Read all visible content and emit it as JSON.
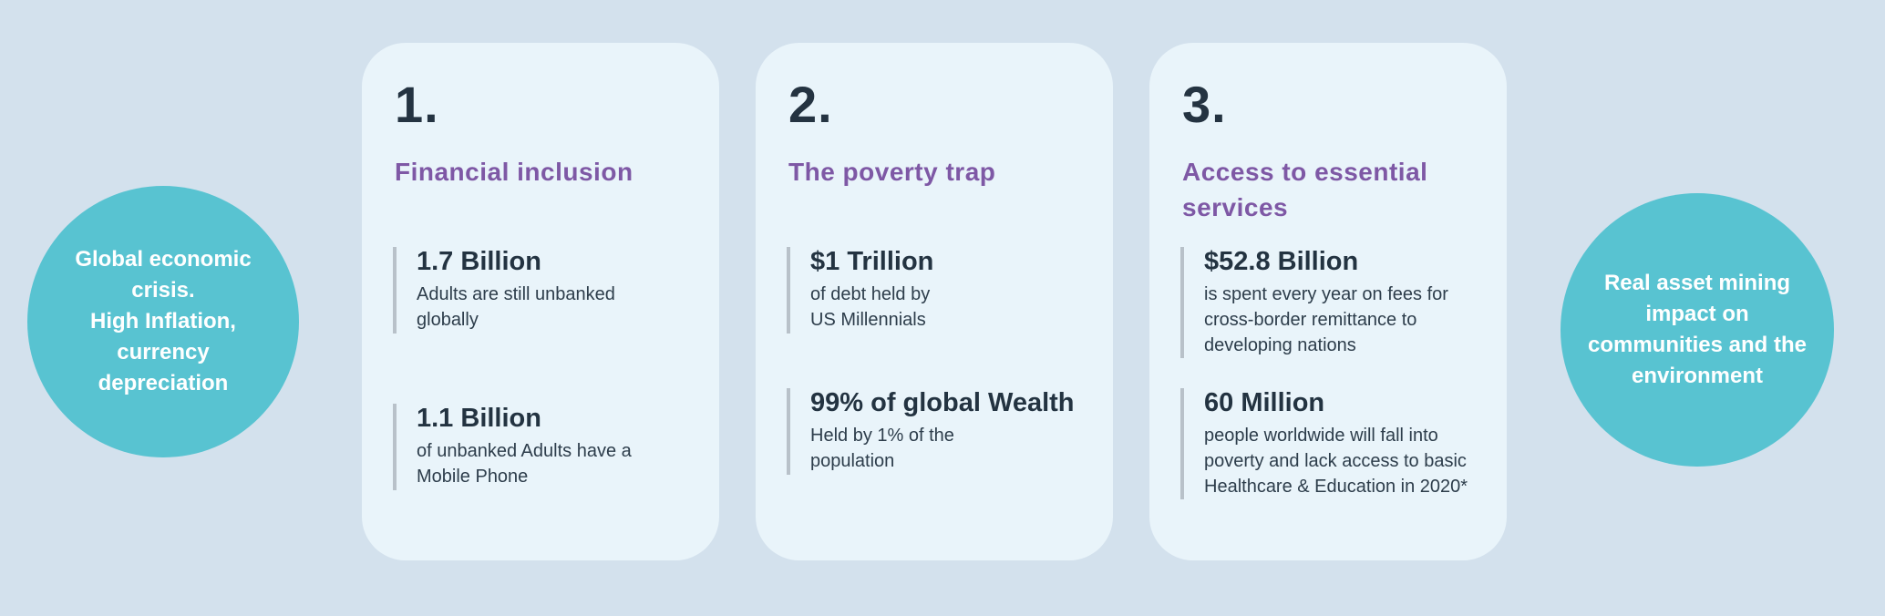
{
  "colors": {
    "page_background": "#d3e1ed",
    "card_background": "#e9f4fa",
    "circle_teal": "#58c3d1",
    "heading_purple": "#7e58a5",
    "dark_navy": "#233341",
    "body_text": "#2d3d4b",
    "stat_bar_gray": "#b8c1c9"
  },
  "left_circle": {
    "text": "Global economic\ncrisis.\nHigh Inflation,\ncurrency\ndepreciation"
  },
  "right_circle": {
    "text": "Real asset  mining\nimpact on\ncommunities and the\nenvironment"
  },
  "cards": [
    {
      "number": "1.",
      "title": "Financial inclusion",
      "stats": [
        {
          "value": "1.7 Billion",
          "description": "Adults are still unbanked\nglobally"
        },
        {
          "value": "1.1 Billion",
          "description": "of unbanked Adults have a\nMobile Phone"
        }
      ]
    },
    {
      "number": "2.",
      "title": "The poverty trap",
      "stats": [
        {
          "value": "$1 Trillion",
          "description": "of debt held by\nUS Millennials"
        },
        {
          "value": "99% of global Wealth",
          "description": "Held by 1% of the\npopulation"
        }
      ]
    },
    {
      "number": "3.",
      "title": "Access to essential\nservices",
      "stats": [
        {
          "value": "$52.8 Billion",
          "description": "is spent every year on fees for\ncross-border remittance to\ndeveloping nations"
        },
        {
          "value": "60 Million",
          "description": "people worldwide will fall into\npoverty and lack access to basic\nHealthcare & Education in 2020*"
        }
      ]
    }
  ]
}
